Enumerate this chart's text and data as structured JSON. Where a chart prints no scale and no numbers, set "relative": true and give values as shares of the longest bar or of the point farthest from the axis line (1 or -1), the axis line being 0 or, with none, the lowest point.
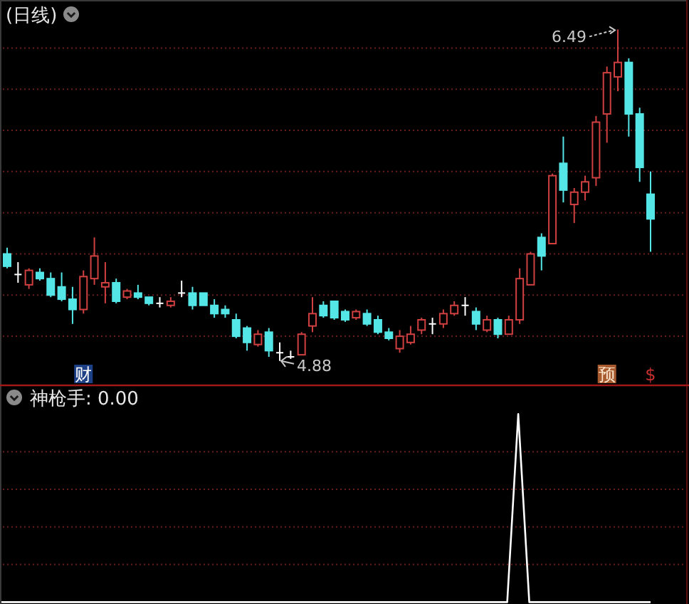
{
  "chart_data": [
    {
      "type": "candlestick",
      "title": "(日线)",
      "categories": [
        null,
        null,
        null,
        null,
        null,
        null,
        null,
        null,
        null,
        null,
        null,
        null,
        null,
        null,
        null,
        null,
        null,
        null,
        null,
        null,
        null,
        null,
        null,
        null,
        null,
        null,
        null,
        null,
        null,
        null,
        null,
        null,
        null,
        null,
        null,
        null,
        null,
        null,
        null,
        null,
        null,
        null,
        null,
        null,
        null,
        null,
        null,
        null,
        null,
        null,
        null,
        null,
        null,
        null,
        null,
        null,
        null,
        null,
        null,
        null
      ],
      "ohlc": [
        [
          5.4,
          5.43,
          5.33,
          5.34
        ],
        [
          5.3,
          5.36,
          5.26,
          5.3
        ],
        [
          5.25,
          5.33,
          5.23,
          5.32
        ],
        [
          5.31,
          5.33,
          5.27,
          5.28
        ],
        [
          5.28,
          5.31,
          5.19,
          5.2
        ],
        [
          5.24,
          5.31,
          5.17,
          5.18
        ],
        [
          5.18,
          5.24,
          5.06,
          5.13
        ],
        [
          5.13,
          5.32,
          5.11,
          5.29
        ],
        [
          5.28,
          5.48,
          5.25,
          5.39
        ],
        [
          5.24,
          5.36,
          5.16,
          5.26
        ],
        [
          5.26,
          5.28,
          5.16,
          5.17
        ],
        [
          5.19,
          5.23,
          5.18,
          5.22
        ],
        [
          5.21,
          5.25,
          5.18,
          5.19
        ],
        [
          5.19,
          5.19,
          5.15,
          5.16
        ],
        [
          5.16,
          5.19,
          5.14,
          5.16
        ],
        [
          5.15,
          5.19,
          5.14,
          5.17
        ],
        [
          5.21,
          5.27,
          5.19,
          5.21
        ],
        [
          5.21,
          5.24,
          5.13,
          5.15
        ],
        [
          5.21,
          5.21,
          5.15,
          5.15
        ],
        [
          5.15,
          5.18,
          5.09,
          5.11
        ],
        [
          5.13,
          5.15,
          5.09,
          5.11
        ],
        [
          5.08,
          5.11,
          4.99,
          5.0
        ],
        [
          5.04,
          5.05,
          4.93,
          4.97
        ],
        [
          4.96,
          5.03,
          4.95,
          5.01
        ],
        [
          5.02,
          5.04,
          4.9,
          4.93
        ],
        [
          4.92,
          4.97,
          4.88,
          4.92
        ],
        [
          4.9,
          4.93,
          4.89,
          4.9
        ],
        [
          4.91,
          5.02,
          4.91,
          5.01
        ],
        [
          5.05,
          5.19,
          5.02,
          5.11
        ],
        [
          5.15,
          5.17,
          5.09,
          5.1
        ],
        [
          5.17,
          5.17,
          5.08,
          5.09
        ],
        [
          5.12,
          5.13,
          5.07,
          5.08
        ],
        [
          5.09,
          5.13,
          5.08,
          5.12
        ],
        [
          5.11,
          5.13,
          5.05,
          5.06
        ],
        [
          5.08,
          5.1,
          5.01,
          5.02
        ],
        [
          5.02,
          5.04,
          4.98,
          4.99
        ],
        [
          4.94,
          5.03,
          4.92,
          5.0
        ],
        [
          4.97,
          5.05,
          4.96,
          5.01
        ],
        [
          5.03,
          5.09,
          5.01,
          5.08
        ],
        [
          5.06,
          5.09,
          5.01,
          5.06
        ],
        [
          5.06,
          5.13,
          5.04,
          5.11
        ],
        [
          5.11,
          5.17,
          5.1,
          5.15
        ],
        [
          5.15,
          5.19,
          5.1,
          5.15
        ],
        [
          5.12,
          5.14,
          5.03,
          5.06
        ],
        [
          5.03,
          5.1,
          5.02,
          5.08
        ],
        [
          5.08,
          5.09,
          4.99,
          5.01
        ],
        [
          5.01,
          5.1,
          5.01,
          5.08
        ],
        [
          5.08,
          5.33,
          5.06,
          5.28
        ],
        [
          5.25,
          5.41,
          5.25,
          5.4
        ],
        [
          5.48,
          5.5,
          5.32,
          5.39
        ],
        [
          5.45,
          5.79,
          5.45,
          5.78
        ],
        [
          5.84,
          5.97,
          5.65,
          5.71
        ],
        [
          5.64,
          5.72,
          5.55,
          5.7
        ],
        [
          5.7,
          5.78,
          5.66,
          5.75
        ],
        [
          5.77,
          6.07,
          5.73,
          6.04
        ],
        [
          6.08,
          6.31,
          5.94,
          6.28
        ],
        [
          6.26,
          6.49,
          6.19,
          6.33
        ],
        [
          6.33,
          6.35,
          5.97,
          6.08
        ],
        [
          6.08,
          6.11,
          5.75,
          5.82
        ],
        [
          5.69,
          5.8,
          5.41,
          5.57
        ]
      ],
      "colors": [
        "#54e6e6",
        "#ffffff",
        "#d04040",
        "#54e6e6",
        "#54e6e6",
        "#54e6e6",
        "#54e6e6",
        "#d04040",
        "#d04040",
        "#d04040",
        "#54e6e6",
        "#d04040",
        "#54e6e6",
        "#54e6e6",
        "#ffffff",
        "#d04040",
        "#ffffff",
        "#54e6e6",
        "#54e6e6",
        "#54e6e6",
        "#54e6e6",
        "#54e6e6",
        "#54e6e6",
        "#d04040",
        "#54e6e6",
        "#ffffff",
        "#ffffff",
        "#d04040",
        "#d04040",
        "#54e6e6",
        "#54e6e6",
        "#54e6e6",
        "#d04040",
        "#54e6e6",
        "#54e6e6",
        "#54e6e6",
        "#d04040",
        "#d04040",
        "#d04040",
        "#ffffff",
        "#d04040",
        "#d04040",
        "#ffffff",
        "#54e6e6",
        "#d04040",
        "#54e6e6",
        "#d04040",
        "#d04040",
        "#d04040",
        "#54e6e6",
        "#d04040",
        "#54e6e6",
        "#d04040",
        "#d04040",
        "#d04040",
        "#d04040",
        "#d04040",
        "#54e6e6",
        "#54e6e6",
        "#54e6e6"
      ],
      "grid": "y",
      "yticks": [
        {
          "value": 5.0,
          "label": null
        },
        {
          "value": 5.2,
          "label": null
        },
        {
          "value": 5.4,
          "label": null
        },
        {
          "value": 5.6,
          "label": null
        },
        {
          "value": 5.8,
          "label": null
        },
        {
          "value": 6.0,
          "label": null
        },
        {
          "value": 6.2,
          "label": null
        },
        {
          "value": 6.4,
          "label": null
        }
      ],
      "annotations": [
        "财",
        "预",
        "$",
        "6.49",
        "4.88"
      ]
    },
    {
      "type": "line",
      "title": "神枪手: 0.00",
      "relative": true,
      "color": "#ffffff",
      "categories": [
        null,
        null,
        null,
        null,
        null,
        null,
        null,
        null,
        null,
        null,
        null,
        null,
        null,
        null,
        null,
        null,
        null,
        null,
        null,
        null,
        null,
        null,
        null,
        null,
        null,
        null,
        null,
        null,
        null,
        null,
        null,
        null,
        null,
        null,
        null,
        null,
        null,
        null,
        null,
        null,
        null,
        null,
        null,
        null,
        null,
        null,
        null,
        null,
        null,
        null,
        null,
        null,
        null,
        null,
        null,
        null,
        null,
        null,
        null,
        null
      ],
      "values": [
        0,
        0,
        0,
        0,
        0,
        0,
        0,
        0,
        0,
        0,
        0,
        0,
        0,
        0,
        0,
        0,
        0,
        0,
        0,
        0,
        0,
        0,
        0,
        0,
        0,
        0,
        0,
        0,
        0,
        0,
        0,
        0,
        0,
        0,
        0,
        0,
        0,
        0,
        0,
        0,
        0,
        0,
        0,
        0,
        0,
        0,
        0,
        1,
        0,
        0,
        0,
        0,
        0,
        0,
        0,
        0,
        0,
        0,
        0,
        0
      ],
      "ref_lines": [
        {
          "axis": "y",
          "value": 0.2,
          "color": "#6a1c1c",
          "line_style": "dotted"
        },
        {
          "axis": "y",
          "value": 0.4,
          "color": "#6a1c1c",
          "line_style": "dotted"
        },
        {
          "axis": "y",
          "value": 0.6,
          "color": "#6a1c1c",
          "line_style": "dotted"
        },
        {
          "axis": "y",
          "value": 0.8,
          "color": "#6a1c1c",
          "line_style": "dotted"
        }
      ]
    }
  ]
}
